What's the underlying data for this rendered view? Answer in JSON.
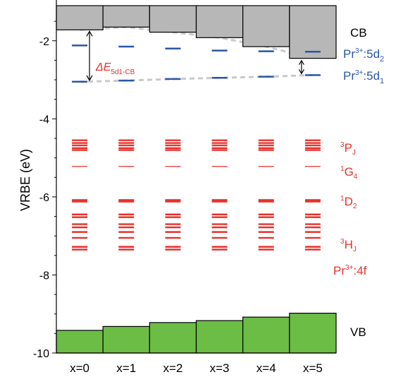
{
  "chart_data": {
    "type": "bar",
    "ylabel": "VRBE (eV)",
    "ylim": [
      -10,
      -1.1
    ],
    "yticks": [
      -2,
      -4,
      -6,
      -8,
      -10
    ],
    "categories": [
      "x=0",
      "x=1",
      "x=2",
      "x=3",
      "x=4",
      "x=5"
    ],
    "cb_bottom": [
      -1.72,
      -1.65,
      -1.78,
      -1.92,
      -2.15,
      -2.45
    ],
    "vb_top": [
      -9.42,
      -9.32,
      -9.22,
      -9.17,
      -9.08,
      -8.98
    ],
    "pr_5d2": [
      -2.12,
      -2.15,
      -2.2,
      -2.25,
      -2.27,
      -2.28
    ],
    "pr_5d1": [
      -3.05,
      -3.02,
      -2.98,
      -2.95,
      -2.92,
      -2.88
    ],
    "pr_4f_levels": {
      "3PJ": [
        -4.55,
        -4.62,
        -4.68,
        -4.75,
        -4.8
      ],
      "1G4": [
        -5.22
      ],
      "1D2": [
        -6.08,
        -6.12
      ],
      "3HJ": [
        -6.45,
        -6.52,
        -6.7,
        -6.78,
        -6.9,
        -7.05,
        -7.28,
        -7.35
      ]
    },
    "delta_label": "ΔE",
    "delta_subscript": "5d1-CB",
    "colors": {
      "cb": "#b7b7b7",
      "vb": "#6bbd45",
      "d": "#2a56a7",
      "f": "#e8312a",
      "guide": "#c9c9c9"
    },
    "labels": {
      "cb": "CB",
      "vb": "VB",
      "pr5d2_prefix": "Pr",
      "pr5d2_sup": "3+",
      "pr5d2_suffix": ":5d",
      "pr5d2_sub": "2",
      "pr5d1_prefix": "Pr",
      "pr5d1_sup": "3+",
      "pr5d1_suffix": ":5d",
      "pr5d1_sub": "1",
      "pj_pre": "3",
      "pj_main": "P",
      "pj_sub": "J",
      "g4_pre": "1",
      "g4_main": "G",
      "g4_sub": "4",
      "d2_pre": "1",
      "d2_main": "D",
      "d2_sub": "2",
      "hj_pre": "3",
      "hj_main": "H",
      "hj_sub": "J",
      "pr4f_prefix": "Pr",
      "pr4f_sup": "3+",
      "pr4f_suffix": ":4f"
    }
  }
}
